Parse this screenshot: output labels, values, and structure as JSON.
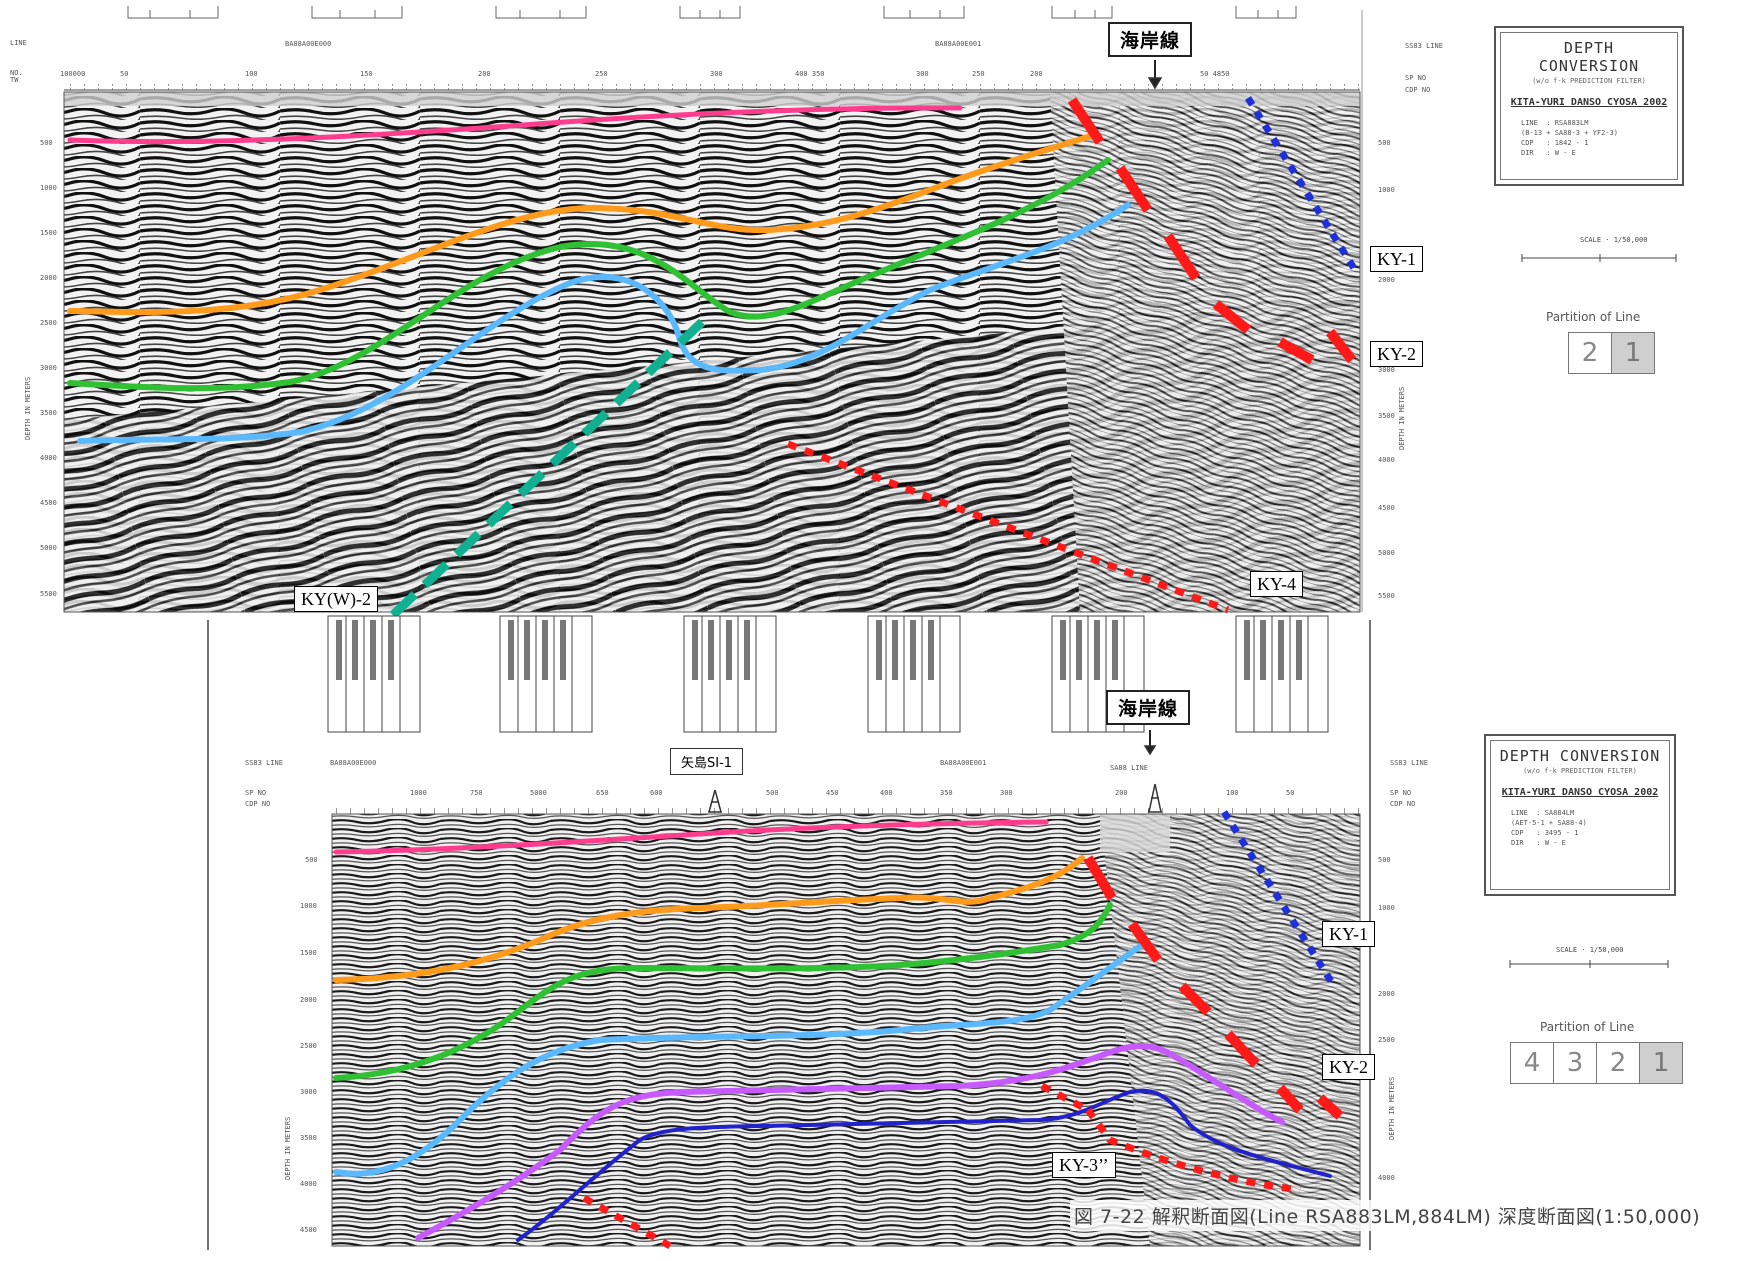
{
  "labels": {
    "top": {
      "coastline": "海岸線",
      "faults": {
        "ky1": "KY-1",
        "ky2": "KY-2",
        "ky4": "KY-4",
        "kyw2": "KY(W)-2"
      },
      "title_block": {
        "heading": "DEPTH CONVERSION",
        "sub": "(w/o f-k PREDICTION FILTER)",
        "project": "KITA-YURI DANSO CYOSA 2002",
        "line1": "LINE  : RSA883LM",
        "line2": "(B-13 + SA88-3 + YF2-3)",
        "line3": "CDP   : 1842 - 1",
        "line4": "DIR   : W - E"
      },
      "partition_title": "Partition of Line",
      "partitions": [
        "2",
        "1"
      ],
      "active_partition": "1"
    },
    "bottom": {
      "coastline": "海岸線",
      "well": "矢島SI-1",
      "faults": {
        "ky1": "KY-1",
        "ky2": "KY-2",
        "ky3": "KY-3’’"
      },
      "title_block": {
        "heading": "DEPTH CONVERSION",
        "sub": "(w/o f-k PREDICTION FILTER)",
        "project": "KITA-YURI DANSO CYOSA 2002",
        "line1": "LINE  : SA884LM",
        "line2": "(AET-5-1 + SA88-4)",
        "line3": "CDP   : 3495 - 1",
        "line4": "DIR   : W - E"
      },
      "partition_title": "Partition of Line",
      "partitions": [
        "4",
        "3",
        "2",
        "1"
      ],
      "active_partition": "1"
    },
    "caption": "図 7-22 解釈断面図(Line RSA883LM,884LM) 深度断面図(1:50,000)"
  },
  "colors": {
    "horizon_pink": "#ff3c8e",
    "horizon_orange": "#ff9a1a",
    "horizon_green": "#2fc033",
    "horizon_lightblue": "#5ab8ff",
    "horizon_purple": "#c65aff",
    "horizon_navy": "#2222cc",
    "fault_red": "#ff1a1a",
    "fault_blue": "#2030d8",
    "fault_teal": "#10b090"
  }
}
